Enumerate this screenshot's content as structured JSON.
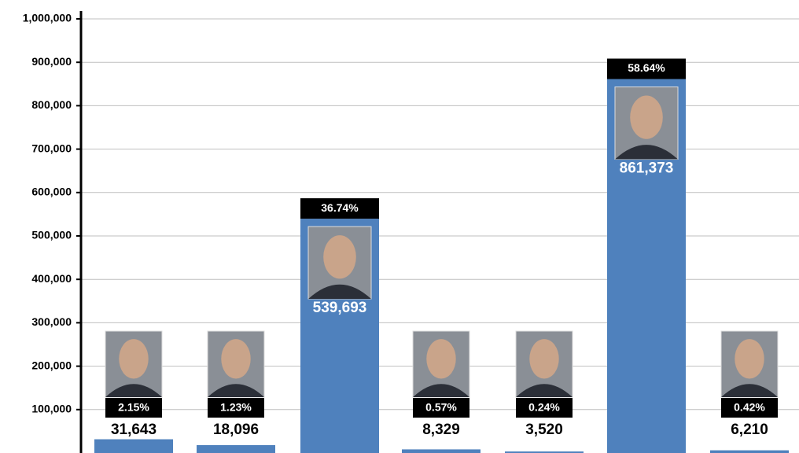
{
  "chart_data": {
    "type": "bar",
    "categories": [
      null,
      null,
      null,
      null,
      null,
      null,
      null
    ],
    "values": [
      31643,
      18096,
      539693,
      8329,
      3520,
      861373,
      6210
    ],
    "value_labels": [
      "31,643",
      "18,096",
      "539,693",
      "8,329",
      "3,520",
      "861,373",
      "6,210"
    ],
    "percent_labels": [
      "2.15%",
      "1.23%",
      "36.74%",
      "0.57%",
      "0.24%",
      "58.64%",
      "0.42%"
    ],
    "color": "#4f81bd",
    "ylim": [
      0,
      1000000
    ],
    "yticks": [
      {
        "value": 100000,
        "label": "100,000"
      },
      {
        "value": 200000,
        "label": "200,000"
      },
      {
        "value": 300000,
        "label": "300,000"
      },
      {
        "value": 400000,
        "label": "400,000"
      },
      {
        "value": 500000,
        "label": "500,000"
      },
      {
        "value": 600000,
        "label": "600,000"
      },
      {
        "value": 700000,
        "label": "700,000"
      },
      {
        "value": 800000,
        "label": "800,000"
      },
      {
        "value": 900000,
        "label": "900,000"
      },
      {
        "value": 1000000,
        "label": "1,000,000"
      }
    ],
    "grid": true
  }
}
